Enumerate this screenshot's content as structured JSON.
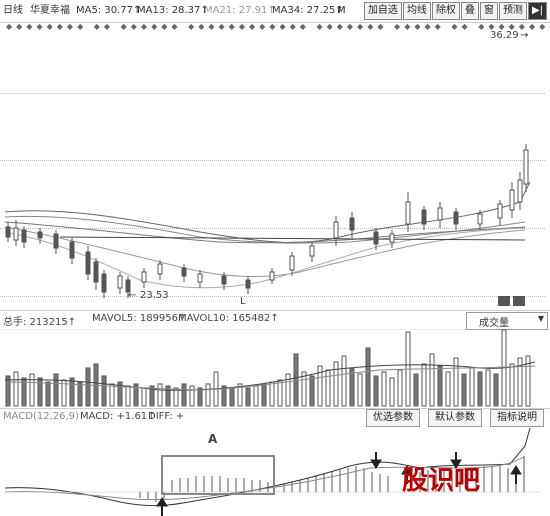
{
  "header": {
    "period": "日线",
    "stock_name": "华夏幸福",
    "ma5": "MA5: 30.77↑",
    "ma13": "MA13: 28.37↑",
    "ma21": "MA21: 27.91↑",
    "ma34": "MA34: 27.25↑",
    "ma_trunc": "M",
    "buttons": [
      "加自选",
      "均线",
      "除权",
      "叠",
      "窗",
      "预测"
    ],
    "last_button_icon": "arrow-right-bar-icon"
  },
  "price_chart": {
    "high_label": "36.29",
    "low_label": "23.53",
    "low_marker": "L",
    "corner_icons": [
      "grid-icon",
      "grid-icon"
    ]
  },
  "volume_panel": {
    "total": "总手: 213215↑",
    "mavol5": "MAVOL5: 189956↑",
    "mavol10": "MAVOL10: 165482↑",
    "selector_label": "成交量"
  },
  "macd_panel": {
    "title": "MACD(12,26,9)",
    "macd": "MACD: +1.61↑",
    "diff": "DIFF: +",
    "buttons": [
      "优选参数",
      "默认参数",
      "指标说明"
    ],
    "annotation": "A"
  },
  "watermark": "股识吧",
  "colors": {
    "candle": "#555555",
    "accent_red": "#c00000",
    "box": "#888888"
  }
}
